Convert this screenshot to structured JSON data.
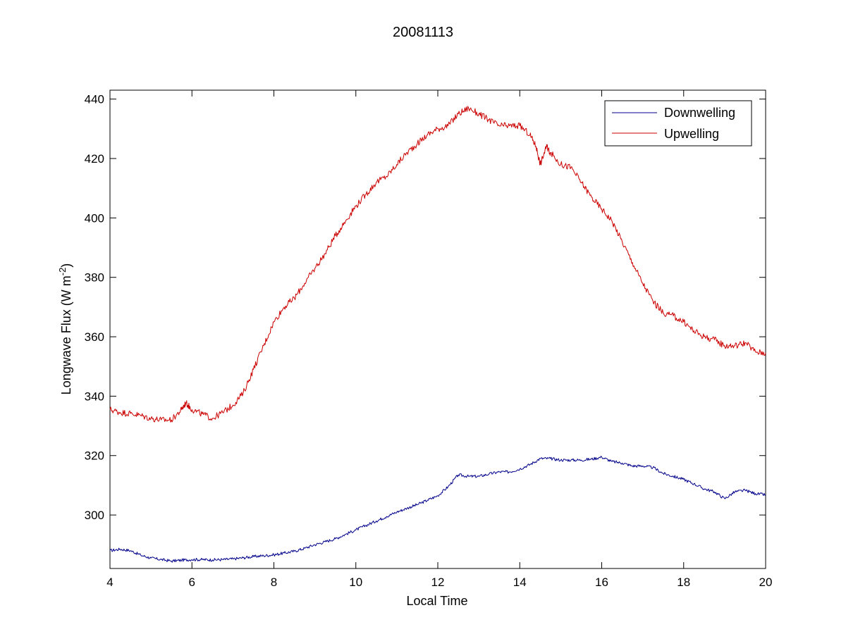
{
  "chart_data": {
    "type": "line",
    "title": "20081113",
    "xlabel": "Local Time",
    "ylabel": {
      "base": "Longwave Flux (W m",
      "superscript": "-2",
      "suffix": ")"
    },
    "xlim": [
      4,
      20
    ],
    "ylim": [
      282,
      443
    ],
    "xticks": [
      4,
      6,
      8,
      10,
      12,
      14,
      16,
      18,
      20
    ],
    "yticks": [
      300,
      320,
      340,
      360,
      380,
      400,
      420,
      440
    ],
    "grid": false,
    "legend_position": "top-right",
    "series": [
      {
        "name": "Downwelling",
        "color": "#00008b",
        "x": [
          4.0,
          4.25,
          4.5,
          4.75,
          5.0,
          5.25,
          5.5,
          5.75,
          6.0,
          6.25,
          6.5,
          6.75,
          7.0,
          7.25,
          7.5,
          7.75,
          8.0,
          8.25,
          8.5,
          8.75,
          9.0,
          9.25,
          9.5,
          9.75,
          10.0,
          10.25,
          10.5,
          10.75,
          11.0,
          11.25,
          11.5,
          11.75,
          12.0,
          12.25,
          12.5,
          12.75,
          13.0,
          13.25,
          13.5,
          13.75,
          14.0,
          14.25,
          14.5,
          14.75,
          15.0,
          15.25,
          15.5,
          15.75,
          16.0,
          16.25,
          16.5,
          16.75,
          17.0,
          17.25,
          17.5,
          17.75,
          18.0,
          18.25,
          18.5,
          18.75,
          19.0,
          19.25,
          19.5,
          19.75,
          20.0
        ],
        "y": [
          288,
          288.5,
          288,
          286.5,
          285.5,
          285,
          284.5,
          284.8,
          285,
          285,
          284.9,
          285,
          285.2,
          285.6,
          286,
          286.3,
          286.6,
          287.2,
          287.8,
          288.8,
          290,
          291,
          292,
          293.5,
          295,
          296.5,
          298,
          299.5,
          301,
          302.3,
          303.5,
          305,
          306.5,
          309.5,
          313.5,
          313,
          313,
          313.8,
          314.5,
          314.5,
          315.5,
          317,
          319,
          319,
          318.5,
          318.5,
          318.5,
          318.8,
          319.5,
          318,
          317.5,
          316.5,
          316.5,
          316,
          314,
          313,
          312,
          310.5,
          308.8,
          307.8,
          305.5,
          307.8,
          308.3,
          307.2,
          306.8
        ]
      },
      {
        "name": "Upwelling",
        "color": "#cc0000",
        "x": [
          4.0,
          4.25,
          4.5,
          4.75,
          5.0,
          5.25,
          5.5,
          5.75,
          5.85,
          6.0,
          6.25,
          6.5,
          6.75,
          7.0,
          7.25,
          7.5,
          7.75,
          8.0,
          8.25,
          8.5,
          8.75,
          9.0,
          9.25,
          9.5,
          9.75,
          10.0,
          10.25,
          10.5,
          10.75,
          11.0,
          11.25,
          11.5,
          11.75,
          12.0,
          12.25,
          12.5,
          12.75,
          13.0,
          13.25,
          13.5,
          13.75,
          14.0,
          14.25,
          14.4,
          14.5,
          14.65,
          14.75,
          15.0,
          15.25,
          15.5,
          15.75,
          16.0,
          16.25,
          16.5,
          16.75,
          17.0,
          17.25,
          17.5,
          17.75,
          18.0,
          18.25,
          18.5,
          18.75,
          19.0,
          19.25,
          19.5,
          19.75,
          20.0
        ],
        "y": [
          335.5,
          334.5,
          334.2,
          333.5,
          332.5,
          332,
          332,
          335.5,
          337.8,
          335.5,
          334,
          332.5,
          334.5,
          337,
          341,
          349,
          357,
          365,
          370,
          373,
          378,
          383,
          388,
          394,
          399,
          404,
          408,
          412,
          414,
          418,
          422,
          425,
          428,
          430,
          431,
          435,
          437,
          435,
          433,
          431,
          431,
          431,
          428,
          424,
          418,
          424,
          422,
          418,
          417,
          412,
          407,
          403,
          399,
          392,
          385,
          378,
          372,
          368,
          367,
          365,
          362,
          360,
          359,
          357,
          357,
          358,
          355,
          354.5
        ]
      }
    ]
  }
}
